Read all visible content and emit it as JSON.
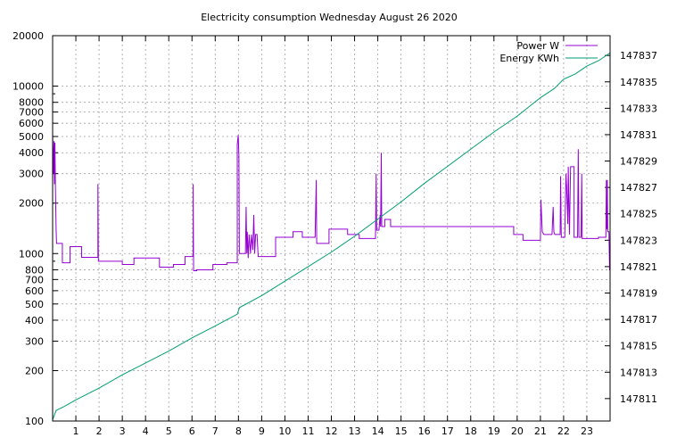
{
  "chart_data": {
    "type": "line",
    "title": "Electricity consumption Wednesday August 26 2020",
    "xlabel": "",
    "ylabel": "",
    "y2label": "",
    "xlim": [
      0,
      24
    ],
    "ylim": [
      100,
      20000
    ],
    "y_scale": "log",
    "y2lim": [
      147809.3,
      147838.5
    ],
    "grid": true,
    "legend_position": "top-right",
    "x_ticks": [
      1,
      2,
      3,
      4,
      5,
      6,
      7,
      8,
      9,
      10,
      11,
      12,
      13,
      14,
      15,
      16,
      17,
      18,
      19,
      20,
      21,
      22,
      23
    ],
    "y_ticks": [
      {
        "value": 100,
        "label": "100"
      },
      {
        "value": 200,
        "label": "200"
      },
      {
        "value": 300,
        "label": "300"
      },
      {
        "value": 400,
        "label": "400"
      },
      {
        "value": 500,
        "label": "500"
      },
      {
        "value": 600,
        "label": "600"
      },
      {
        "value": 700,
        "label": "700"
      },
      {
        "value": 800,
        "label": "800"
      },
      {
        "value": 1000,
        "label": "1000"
      },
      {
        "value": 2000,
        "label": "2000"
      },
      {
        "value": 3000,
        "label": "3000"
      },
      {
        "value": 4000,
        "label": "4000"
      },
      {
        "value": 5000,
        "label": "5000"
      },
      {
        "value": 6000,
        "label": "6000"
      },
      {
        "value": 7000,
        "label": "7000"
      },
      {
        "value": 8000,
        "label": "8000"
      },
      {
        "value": 10000,
        "label": "10000"
      },
      {
        "value": 20000,
        "label": "20000"
      }
    ],
    "y_minor_ticks": [
      900,
      9000
    ],
    "y2_ticks": [
      147811,
      147813,
      147815,
      147817,
      147819,
      147821,
      147823,
      147825,
      147827,
      147829,
      147831,
      147833,
      147835,
      147837
    ],
    "series": [
      {
        "name": "Power W",
        "axis": "y",
        "color": "#9400d3",
        "points": [
          [
            0.0,
            5200
          ],
          [
            0.04,
            3000
          ],
          [
            0.06,
            4700
          ],
          [
            0.08,
            2600
          ],
          [
            0.1,
            4600
          ],
          [
            0.12,
            2500
          ],
          [
            0.15,
            1400
          ],
          [
            0.17,
            1150
          ],
          [
            0.42,
            1150
          ],
          [
            0.42,
            880
          ],
          [
            0.75,
            880
          ],
          [
            0.75,
            1100
          ],
          [
            1.25,
            1100
          ],
          [
            1.25,
            950
          ],
          [
            1.95,
            950
          ],
          [
            1.95,
            2600
          ],
          [
            1.97,
            900
          ],
          [
            3.0,
            900
          ],
          [
            3.0,
            860
          ],
          [
            3.5,
            860
          ],
          [
            3.5,
            940
          ],
          [
            4.6,
            940
          ],
          [
            4.6,
            830
          ],
          [
            5.2,
            830
          ],
          [
            5.2,
            860
          ],
          [
            5.7,
            860
          ],
          [
            5.7,
            960
          ],
          [
            6.05,
            960
          ],
          [
            6.05,
            2600
          ],
          [
            6.07,
            790
          ],
          [
            6.2,
            790
          ],
          [
            6.2,
            800
          ],
          [
            6.9,
            800
          ],
          [
            6.9,
            860
          ],
          [
            7.5,
            860
          ],
          [
            7.5,
            880
          ],
          [
            7.95,
            880
          ],
          [
            7.95,
            4500
          ],
          [
            7.99,
            5100
          ],
          [
            8.02,
            3900
          ],
          [
            8.04,
            1000
          ],
          [
            8.3,
            1000
          ],
          [
            8.33,
            1900
          ],
          [
            8.36,
            1000
          ],
          [
            8.38,
            1350
          ],
          [
            8.42,
            940
          ],
          [
            8.46,
            1300
          ],
          [
            8.52,
            1000
          ],
          [
            8.56,
            1300
          ],
          [
            8.62,
            1050
          ],
          [
            8.66,
            1700
          ],
          [
            8.7,
            1000
          ],
          [
            8.74,
            1300
          ],
          [
            8.8,
            1300
          ],
          [
            8.85,
            960
          ],
          [
            9.6,
            960
          ],
          [
            9.6,
            1250
          ],
          [
            10.35,
            1250
          ],
          [
            10.35,
            1350
          ],
          [
            10.75,
            1350
          ],
          [
            10.75,
            1250
          ],
          [
            11.3,
            1250
          ],
          [
            11.35,
            2750
          ],
          [
            11.37,
            1150
          ],
          [
            11.9,
            1150
          ],
          [
            11.9,
            1400
          ],
          [
            12.7,
            1400
          ],
          [
            12.7,
            1300
          ],
          [
            13.2,
            1300
          ],
          [
            13.2,
            1230
          ],
          [
            13.9,
            1230
          ],
          [
            13.93,
            3000
          ],
          [
            13.95,
            1380
          ],
          [
            14.05,
            1380
          ],
          [
            14.1,
            1700
          ],
          [
            14.12,
            1450
          ],
          [
            14.15,
            4000
          ],
          [
            14.17,
            1450
          ],
          [
            14.3,
            1450
          ],
          [
            14.3,
            1600
          ],
          [
            14.55,
            1600
          ],
          [
            14.55,
            1450
          ],
          [
            19.85,
            1450
          ],
          [
            19.85,
            1300
          ],
          [
            20.25,
            1300
          ],
          [
            20.25,
            1200
          ],
          [
            21.0,
            1200
          ],
          [
            21.02,
            2100
          ],
          [
            21.05,
            1700
          ],
          [
            21.08,
            1350
          ],
          [
            21.15,
            1300
          ],
          [
            21.5,
            1300
          ],
          [
            21.55,
            1900
          ],
          [
            21.58,
            1350
          ],
          [
            21.62,
            1300
          ],
          [
            21.85,
            1300
          ],
          [
            21.87,
            2900
          ],
          [
            21.9,
            1250
          ],
          [
            22.05,
            1250
          ],
          [
            22.1,
            3000
          ],
          [
            22.13,
            2500
          ],
          [
            22.18,
            1500
          ],
          [
            22.2,
            3300
          ],
          [
            22.25,
            1300
          ],
          [
            22.3,
            3300
          ],
          [
            22.45,
            3300
          ],
          [
            22.45,
            1250
          ],
          [
            22.6,
            1250
          ],
          [
            22.63,
            4200
          ],
          [
            22.66,
            1250
          ],
          [
            22.75,
            1250
          ],
          [
            22.78,
            3000
          ],
          [
            22.8,
            1230
          ],
          [
            23.5,
            1230
          ],
          [
            23.5,
            1250
          ],
          [
            23.82,
            1250
          ],
          [
            23.84,
            2750
          ],
          [
            23.86,
            1400
          ],
          [
            23.88,
            2750
          ],
          [
            23.9,
            1350
          ],
          [
            23.95,
            1350
          ],
          [
            23.98,
            800
          ],
          [
            24.25,
            800
          ],
          [
            24.25,
            790
          ],
          [
            24.8,
            790
          ],
          [
            24.85,
            2800
          ],
          [
            24.9,
            800
          ],
          [
            25.0,
            800
          ]
        ]
      },
      {
        "name": "Energy KWh",
        "axis": "y2",
        "color": "#009e73",
        "points": [
          [
            0.0,
            147809.4
          ],
          [
            0.15,
            147810.1
          ],
          [
            0.5,
            147810.4
          ],
          [
            1.0,
            147810.9
          ],
          [
            2.0,
            147811.8
          ],
          [
            3.0,
            147812.8
          ],
          [
            4.0,
            147813.7
          ],
          [
            5.0,
            147814.6
          ],
          [
            6.0,
            147815.6
          ],
          [
            7.0,
            147816.5
          ],
          [
            7.95,
            147817.4
          ],
          [
            8.05,
            147817.9
          ],
          [
            9.0,
            147818.8
          ],
          [
            10.0,
            147819.9
          ],
          [
            11.0,
            147821.0
          ],
          [
            12.0,
            147822.1
          ],
          [
            13.0,
            147823.3
          ],
          [
            14.0,
            147824.6
          ],
          [
            15.0,
            147825.9
          ],
          [
            16.0,
            147827.3
          ],
          [
            17.0,
            147828.6
          ],
          [
            18.0,
            147829.9
          ],
          [
            19.0,
            147831.2
          ],
          [
            20.0,
            147832.4
          ],
          [
            21.0,
            147833.8
          ],
          [
            21.6,
            147834.5
          ],
          [
            22.0,
            147835.2
          ],
          [
            22.5,
            147835.6
          ],
          [
            23.0,
            147836.2
          ],
          [
            23.5,
            147836.6
          ],
          [
            24.0,
            147837.2
          ],
          [
            25.0,
            147838.4
          ]
        ]
      }
    ]
  }
}
